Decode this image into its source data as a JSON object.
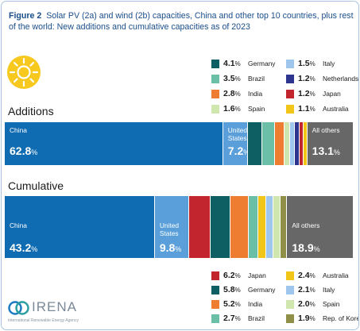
{
  "figure": {
    "label": "Figure 2",
    "text": "Solar PV (2a) and wind (2b) capacities, China and other top 10 countries, plus rest of the world: New additions and cumulative capacities as of 2023"
  },
  "logo": {
    "name": "IRENA",
    "subtitle": "International Renewable Energy Agency"
  },
  "colors": {
    "china": "#0f6cb2",
    "us": "#5a9fd9",
    "germany": "#0d5f63",
    "brazil": "#6cbfa7",
    "india": "#ee7d32",
    "spain": "#cfe6ae",
    "italy": "#9fc6ec",
    "netherlands": "#2d358f",
    "japan": "#c3252e",
    "australia": "#f2c619",
    "korea": "#8f8f48",
    "others": "#676767",
    "title": "#1b4e8a"
  },
  "chart_data": [
    {
      "type": "bar",
      "title": "Additions",
      "unit": "%",
      "segments": [
        {
          "key": "china",
          "name": "China",
          "value": 62.8,
          "label": "62.8",
          "labeled": true
        },
        {
          "key": "us",
          "name": "United States",
          "value": 7.2,
          "label": "7.2",
          "labeled": true
        },
        {
          "key": "germany",
          "name": "Germany",
          "value": 4.1
        },
        {
          "key": "brazil",
          "name": "Brazil",
          "value": 3.5
        },
        {
          "key": "india",
          "name": "India",
          "value": 2.8
        },
        {
          "key": "spain",
          "name": "Spain",
          "value": 1.6
        },
        {
          "key": "italy",
          "name": "Italy",
          "value": 1.5
        },
        {
          "key": "netherlands",
          "name": "Netherlands",
          "value": 1.2
        },
        {
          "key": "japan",
          "name": "Japan",
          "value": 1.2
        },
        {
          "key": "australia",
          "name": "Australia",
          "value": 1.1
        },
        {
          "key": "others",
          "name": "All others",
          "value": 13.1,
          "label": "13.1",
          "labeled": true
        }
      ],
      "legend": [
        {
          "key": "germany",
          "value": "4.1",
          "name": "Germany"
        },
        {
          "key": "brazil",
          "value": "3.5",
          "name": "Brazil"
        },
        {
          "key": "india",
          "value": "2.8",
          "name": "India"
        },
        {
          "key": "spain",
          "value": "1.6",
          "name": "Spain"
        },
        {
          "key": "italy",
          "value": "1.5",
          "name": "Italy"
        },
        {
          "key": "netherlands",
          "value": "1.2",
          "name": "Netherlands"
        },
        {
          "key": "japan",
          "value": "1.2",
          "name": "Japan"
        },
        {
          "key": "australia",
          "value": "1.1",
          "name": "Australia"
        }
      ]
    },
    {
      "type": "bar",
      "title": "Cumulative",
      "unit": "%",
      "segments": [
        {
          "key": "china",
          "name": "China",
          "value": 43.2,
          "label": "43.2",
          "labeled": true
        },
        {
          "key": "us",
          "name": "United States",
          "value": 9.8,
          "label": "9.8",
          "labeled": true
        },
        {
          "key": "japan",
          "name": "Japan",
          "value": 6.2
        },
        {
          "key": "germany",
          "name": "Germany",
          "value": 5.8
        },
        {
          "key": "india",
          "name": "India",
          "value": 5.2
        },
        {
          "key": "brazil",
          "name": "Brazil",
          "value": 2.7
        },
        {
          "key": "australia",
          "name": "Australia",
          "value": 2.4
        },
        {
          "key": "italy",
          "name": "Italy",
          "value": 2.1
        },
        {
          "key": "spain",
          "name": "Spain",
          "value": 2.0
        },
        {
          "key": "korea",
          "name": "Rep. of Korea",
          "value": 1.9
        },
        {
          "key": "others",
          "name": "All others",
          "value": 18.9,
          "label": "18.9",
          "labeled": true
        }
      ],
      "legend": [
        {
          "key": "japan",
          "value": "6.2",
          "name": "Japan"
        },
        {
          "key": "germany",
          "value": "5.8",
          "name": "Germany"
        },
        {
          "key": "india",
          "value": "5.2",
          "name": "India"
        },
        {
          "key": "brazil",
          "value": "2.7",
          "name": "Brazil"
        },
        {
          "key": "australia",
          "value": "2.4",
          "name": "Australia"
        },
        {
          "key": "italy",
          "value": "2.1",
          "name": "Italy"
        },
        {
          "key": "spain",
          "value": "2.0",
          "name": "Spain"
        },
        {
          "key": "korea",
          "value": "1.9",
          "name": "Rep. of Korea"
        }
      ]
    }
  ]
}
